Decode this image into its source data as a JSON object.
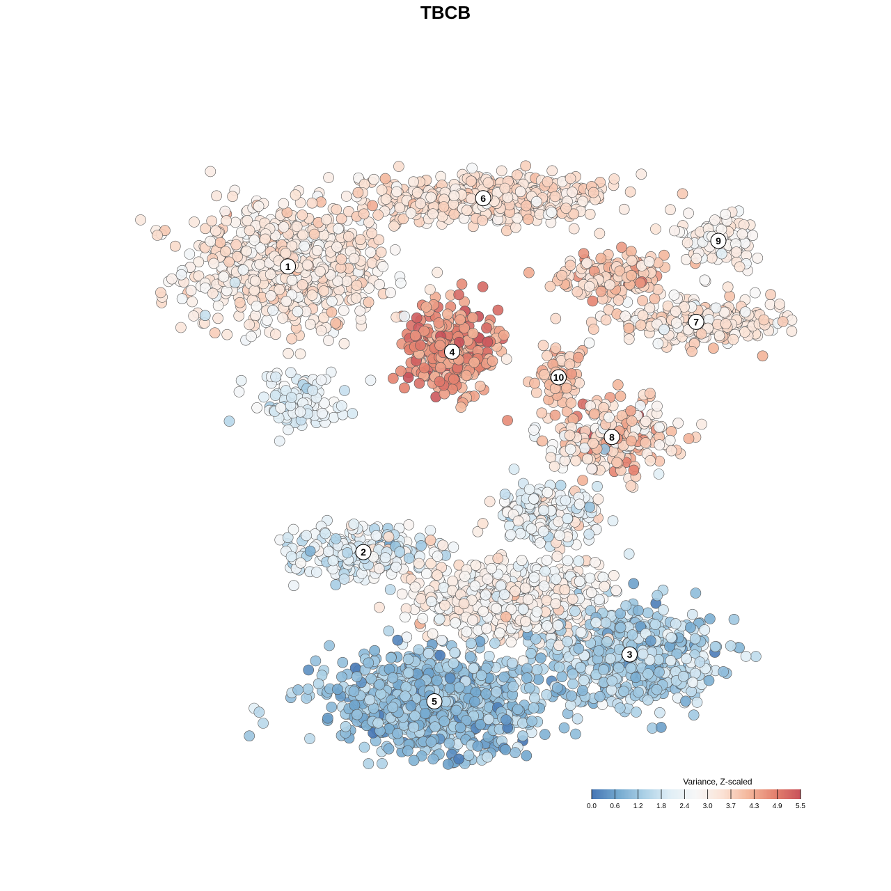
{
  "chart_data": {
    "type": "scatter",
    "title": "TBCB",
    "xlabel": "",
    "ylabel": "",
    "grid": false,
    "axes_visible": false,
    "legend": {
      "title": "Variance, Z-scaled",
      "placement": "bottom-right",
      "ticks": [
        "0.0",
        "0.6",
        "1.2",
        "1.8",
        "2.4",
        "3.0",
        "3.7",
        "4.3",
        "4.9",
        "5.5"
      ],
      "range": [
        0,
        5.5
      ],
      "colors": [
        "#4575b4",
        "#74a9cf",
        "#abd0e6",
        "#e0eef6",
        "#f7f7f7",
        "#fbe3d6",
        "#f4b79c",
        "#e4826f",
        "#c8525a"
      ]
    },
    "point_style": {
      "stroke": "#555555",
      "opacity": 0.9
    },
    "clusters": [
      {
        "label": "1",
        "x": -4.1,
        "y": 4.2,
        "sx": 2.1,
        "sy": 1.35,
        "n": 720,
        "mean": 3.2,
        "sd": 0.35
      },
      {
        "label": "2",
        "x": -2.4,
        "y": -2.5,
        "sx": 1.4,
        "sy": 0.6,
        "n": 230,
        "mean": 2.2,
        "sd": 0.5
      },
      {
        "label": "3",
        "x": 3.6,
        "y": -4.9,
        "sx": 1.8,
        "sy": 1.05,
        "n": 520,
        "mean": 1.4,
        "sd": 0.45
      },
      {
        "label": "4",
        "x": -0.4,
        "y": 2.2,
        "sx": 0.95,
        "sy": 0.95,
        "n": 330,
        "mean": 4.6,
        "sd": 0.45
      },
      {
        "label": "5",
        "x": -0.8,
        "y": -6.0,
        "sx": 2.1,
        "sy": 1.0,
        "n": 820,
        "mean": 1.05,
        "sd": 0.4
      },
      {
        "label": "6",
        "x": 0.3,
        "y": 5.8,
        "sx": 2.5,
        "sy": 0.55,
        "n": 430,
        "mean": 3.45,
        "sd": 0.3
      },
      {
        "label": "7",
        "x": 5.1,
        "y": 2.9,
        "sx": 1.8,
        "sy": 0.45,
        "n": 260,
        "mean": 3.3,
        "sd": 0.4
      },
      {
        "label": "8",
        "x": 3.2,
        "y": 0.2,
        "sx": 1.3,
        "sy": 0.75,
        "n": 250,
        "mean": 3.6,
        "sd": 0.7
      },
      {
        "label": "9",
        "x": 5.6,
        "y": 4.8,
        "sx": 0.75,
        "sy": 0.55,
        "n": 120,
        "mean": 2.95,
        "sd": 0.3
      },
      {
        "label": "10",
        "x": 2.0,
        "y": 1.6,
        "sx": 0.45,
        "sy": 0.65,
        "n": 70,
        "mean": 3.9,
        "sd": 0.4
      },
      {
        "label": "",
        "x": 1.0,
        "y": -3.6,
        "sx": 2.0,
        "sy": 0.9,
        "n": 560,
        "mean": 2.9,
        "sd": 0.4
      },
      {
        "label": "",
        "x": 1.8,
        "y": -1.6,
        "sx": 1.2,
        "sy": 0.6,
        "n": 180,
        "mean": 2.4,
        "sd": 0.5
      },
      {
        "label": "",
        "x": 3.2,
        "y": 4.0,
        "sx": 1.1,
        "sy": 0.45,
        "n": 150,
        "mean": 3.8,
        "sd": 0.4
      },
      {
        "label": "",
        "x": -3.8,
        "y": 1.0,
        "sx": 0.9,
        "sy": 0.5,
        "n": 110,
        "mean": 2.3,
        "sd": 0.45
      }
    ],
    "xlim": [
      -8,
      8
    ],
    "ylim": [
      -8,
      8
    ]
  }
}
